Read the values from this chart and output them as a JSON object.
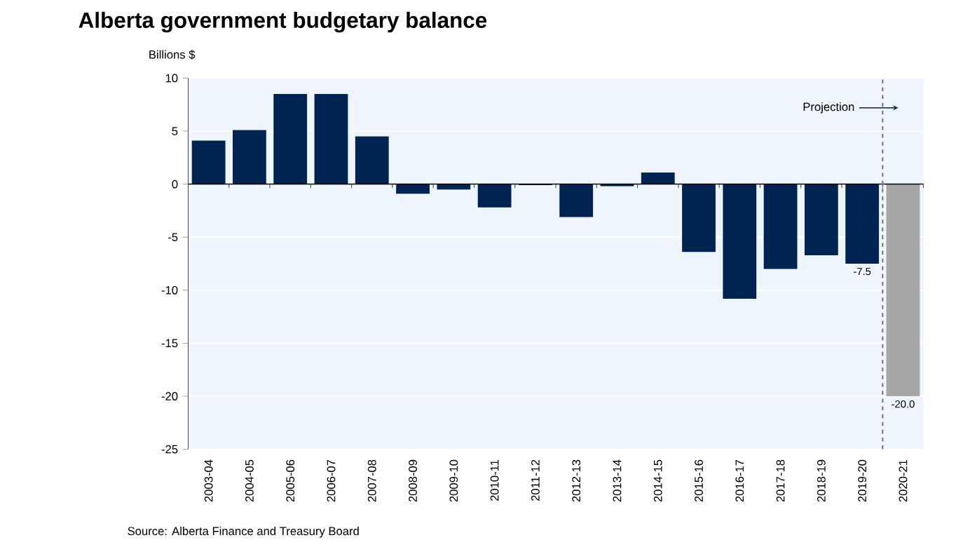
{
  "chart_data": {
    "type": "bar",
    "title": "Alberta government budgetary balance",
    "ylabel": "Billions $",
    "categories": [
      "2003-04",
      "2004-05",
      "2005-06",
      "2006-07",
      "2007-08",
      "2008-09",
      "2009-10",
      "2010-11",
      "2011-12",
      "2012-13",
      "2013-14",
      "2014-15",
      "2015-16",
      "2016-17",
      "2017-18",
      "2018-19",
      "2019-20",
      "2020-21"
    ],
    "values": [
      4.1,
      5.1,
      8.5,
      8.5,
      4.5,
      -0.9,
      -0.5,
      -2.2,
      -0.1,
      -3.1,
      -0.2,
      1.1,
      -6.4,
      -10.8,
      -8.0,
      -6.7,
      -7.5,
      -20.0
    ],
    "colors": [
      "#002451",
      "#002451",
      "#002451",
      "#002451",
      "#002451",
      "#002451",
      "#002451",
      "#002451",
      "#002451",
      "#002451",
      "#002451",
      "#002451",
      "#002451",
      "#002451",
      "#002451",
      "#002451",
      "#002451",
      "#a6a6a6"
    ],
    "value_labels": [
      null,
      null,
      null,
      null,
      null,
      null,
      null,
      null,
      null,
      null,
      null,
      null,
      null,
      null,
      null,
      null,
      "-7.5",
      "-20.0"
    ],
    "ylim": [
      -25,
      10
    ],
    "yticks": [
      -25,
      -20,
      -15,
      -10,
      -5,
      0,
      5,
      10
    ],
    "grid": "y",
    "ref_lines": [
      {
        "axis": "x",
        "value": "2020-21",
        "label": "Projection",
        "line_style": "dashed",
        "color": "#808080"
      }
    ],
    "annotations": [
      "Source: Alberta Finance and Treasury Board"
    ]
  }
}
